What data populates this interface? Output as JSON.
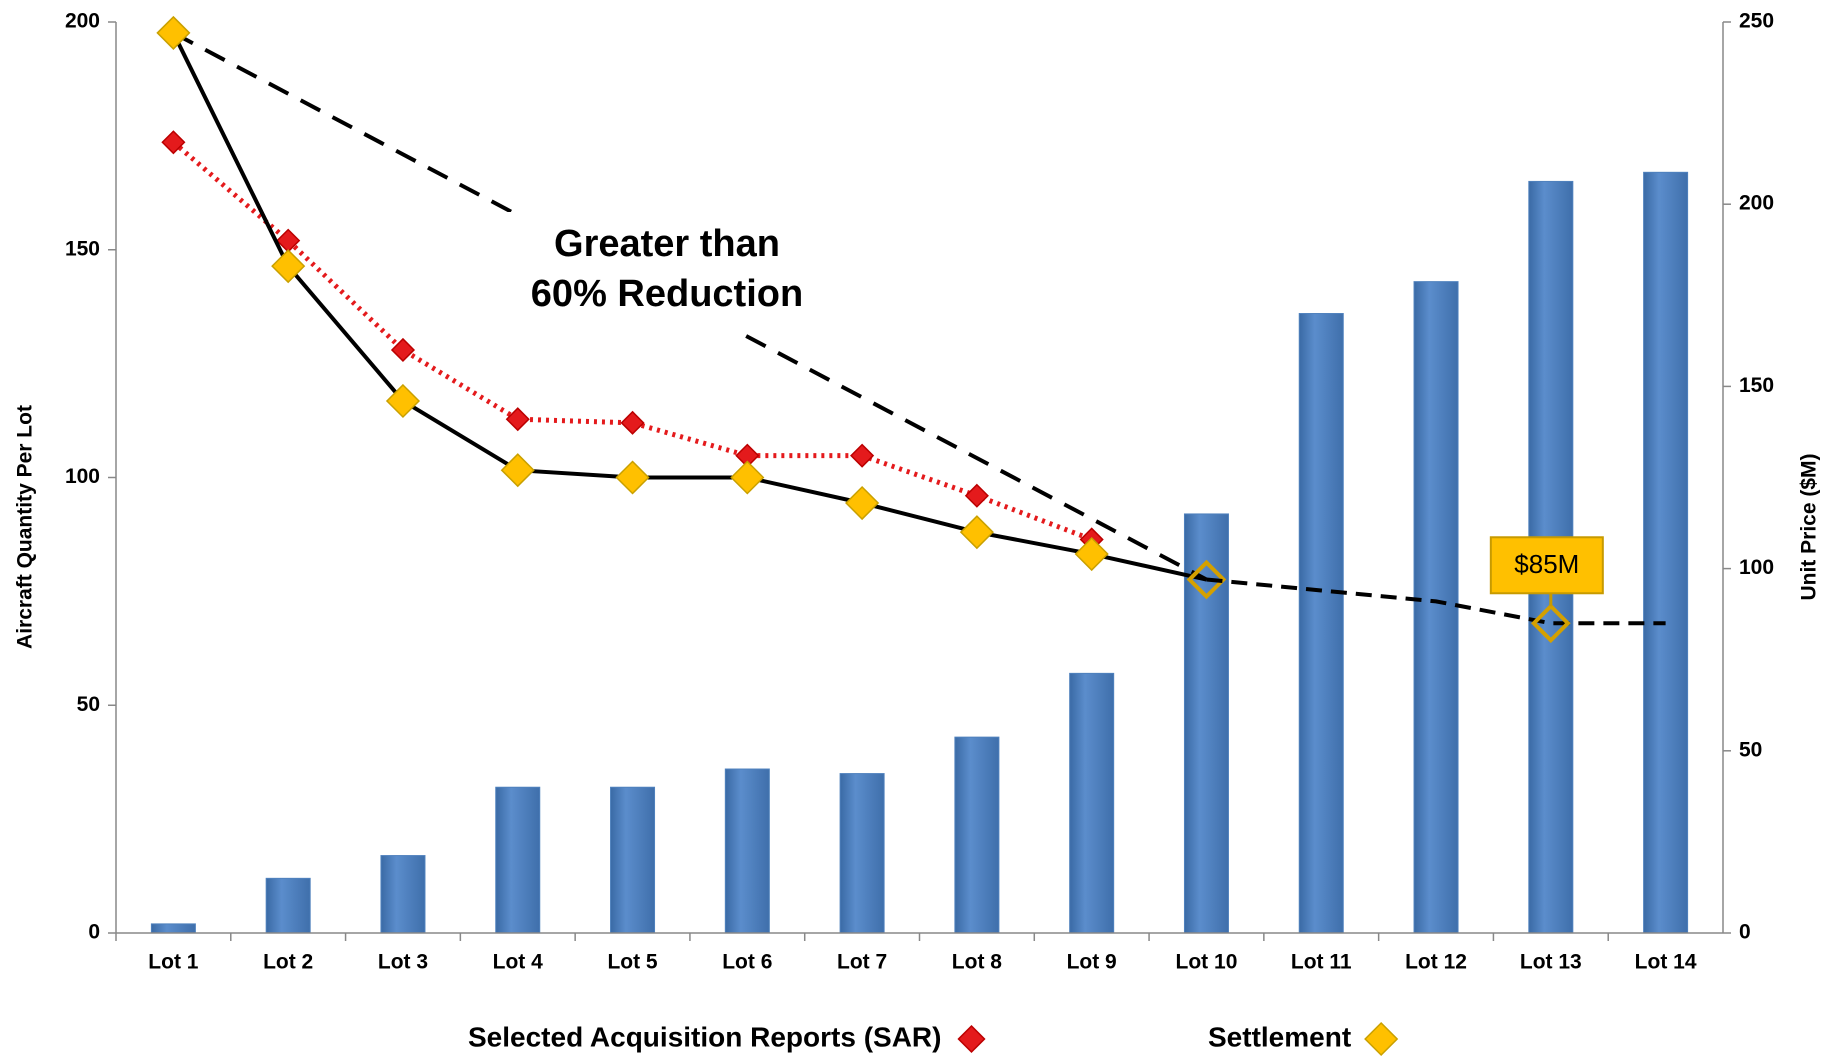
{
  "chart_data": {
    "type": "bar_line",
    "annotation_lines": [
      "Greater than",
      "60% Reduction"
    ],
    "y_label": "Aircraft Quantity Per Lot",
    "y2_label": "Unit Price ($M)",
    "categories": [
      "Lot 1",
      "Lot 2",
      "Lot 3",
      "Lot 4",
      "Lot 5",
      "Lot 6",
      "Lot 7",
      "Lot 8",
      "Lot 9",
      "Lot 10",
      "Lot 11",
      "Lot 12",
      "Lot 13",
      "Lot 14"
    ],
    "ylim": [
      0,
      200
    ],
    "yticks": [
      0,
      50,
      100,
      150,
      200
    ],
    "y2lim": [
      0,
      250
    ],
    "y2ticks": [
      0,
      50,
      100,
      150,
      200,
      250
    ],
    "bar_color": "#4f81bd",
    "values": [
      2,
      12,
      17,
      32,
      32,
      36,
      35,
      43,
      57,
      92,
      136,
      143,
      165,
      167
    ],
    "series": [
      {
        "name": "Selected Acquisition Reports (SAR)",
        "color": "#e41a1c",
        "axis": "y2",
        "line": "dotted",
        "marker": "filled",
        "values": [
          217,
          190,
          160,
          141,
          140,
          131,
          131,
          120,
          108,
          null,
          null,
          null,
          null,
          null
        ]
      },
      {
        "name": "Settlement",
        "color": "#ffc000",
        "axis": "y2",
        "line": "solid",
        "marker": "filled",
        "hollow_points": [
          9
        ],
        "values": [
          247,
          183,
          146,
          127,
          125,
          125,
          118,
          110,
          104,
          97,
          null,
          null,
          null,
          null
        ]
      },
      {
        "color": "#ffc000",
        "axis": "y2",
        "line": "dashed",
        "marker": "none",
        "hollow_points": [
          12
        ],
        "values": [
          null,
          null,
          null,
          null,
          null,
          null,
          null,
          null,
          null,
          97,
          94,
          91,
          85,
          85
        ],
        "value_labels": [
          null,
          null,
          null,
          null,
          null,
          null,
          null,
          null,
          null,
          null,
          null,
          null,
          "$85M",
          null
        ]
      }
    ]
  }
}
